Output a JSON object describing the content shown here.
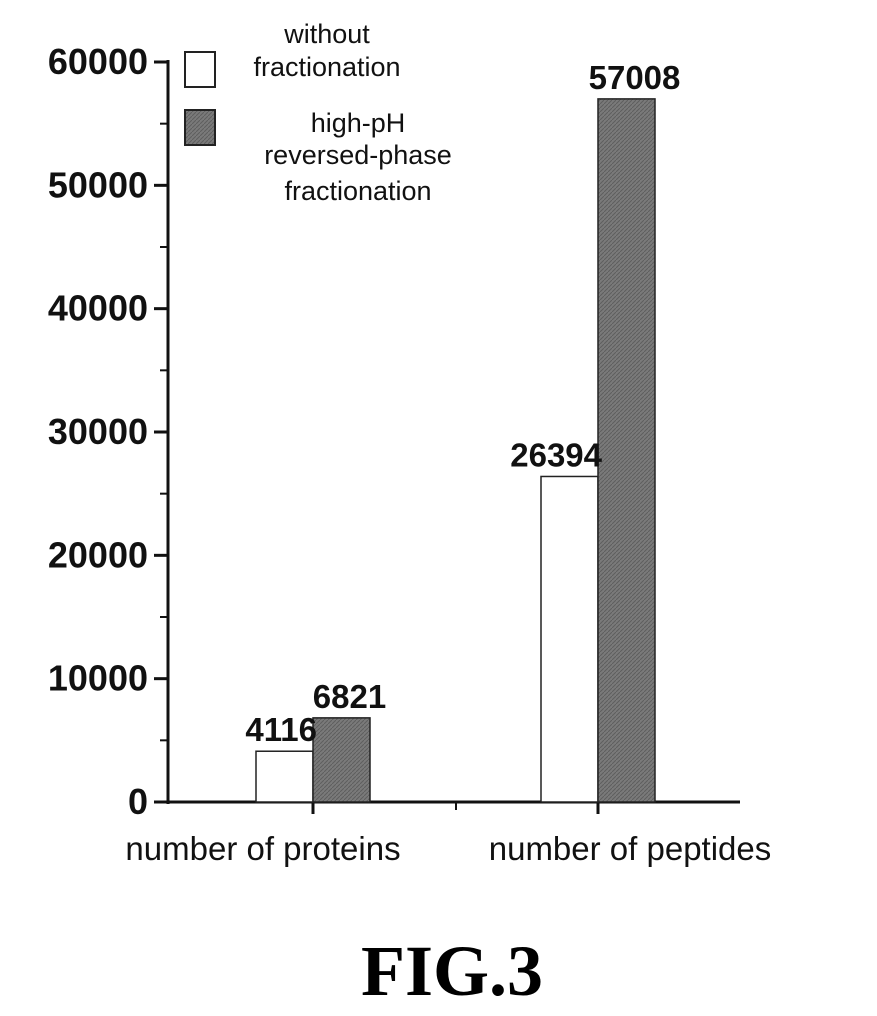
{
  "chart_data": {
    "type": "bar",
    "categories": [
      "number of proteins",
      "number of peptides"
    ],
    "series": [
      {
        "name": "without fractionation",
        "values": [
          4116,
          26394
        ]
      },
      {
        "name": "high-pH reversed-phase fractionation",
        "values": [
          6821,
          57008
        ]
      }
    ],
    "data_labels": [
      [
        "4116",
        "26394"
      ],
      [
        "6821",
        "57008"
      ]
    ],
    "legend_lines": [
      [
        "without",
        "fractionation"
      ],
      [
        "high-pH",
        "reversed-phase",
        "fractionation"
      ]
    ],
    "ylim": [
      0,
      60000
    ],
    "yticks": [
      0,
      10000,
      20000,
      30000,
      40000,
      50000,
      60000
    ],
    "ytick_labels": [
      "0",
      "10000",
      "20000",
      "30000",
      "40000",
      "50000",
      "60000"
    ],
    "legend_position": "top-left",
    "grid": false,
    "colors": {
      "without fractionation": "#ffffff",
      "high-pH reversed-phase fractionation": "#7a7a7a",
      "axis": "#111111"
    }
  },
  "figure_label": "FIG.3"
}
